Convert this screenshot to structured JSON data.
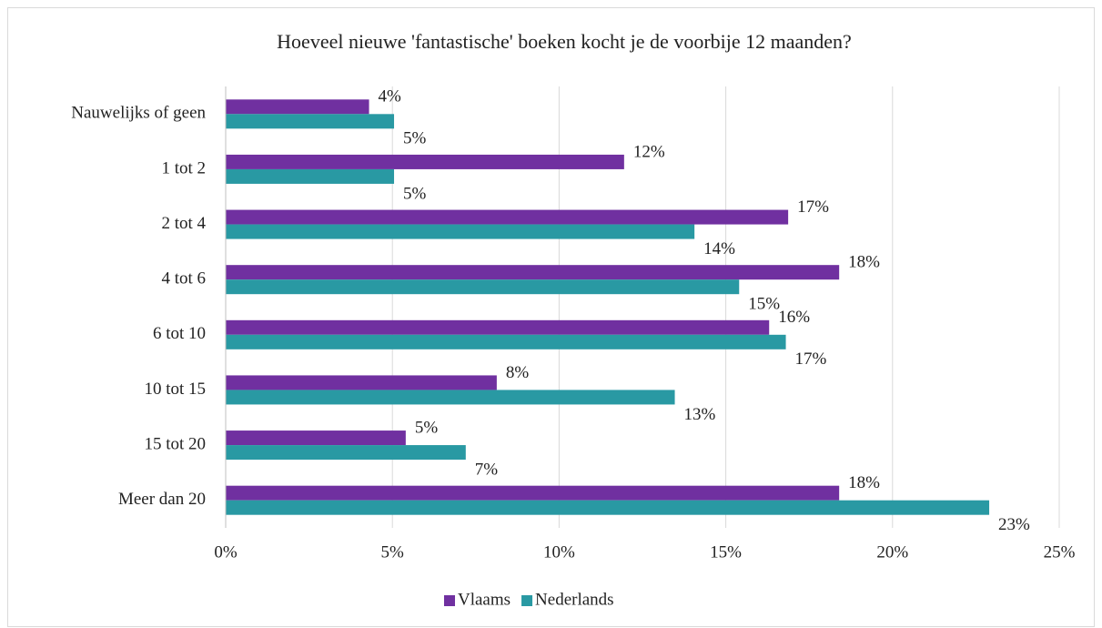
{
  "chart_data": {
    "type": "hbar",
    "title": "Hoeveel nieuwe 'fantastische' boeken kocht je de voorbije 12 maanden?",
    "categories": [
      "Nauwelijks of geen",
      "1 tot 2",
      "2 tot 4",
      "4 tot 6",
      "6 tot 10",
      "10 tot 15",
      "15 tot 20",
      "Meer dan 20"
    ],
    "series": [
      {
        "name": "Vlaams",
        "color": "#7030a0",
        "values": [
          4.3,
          11.95,
          16.87,
          18.4,
          16.3,
          8.13,
          5.4,
          18.4
        ],
        "value_labels": [
          "4%",
          "12%",
          "17%",
          "18%",
          "16%",
          "8%",
          "5%",
          "18%"
        ]
      },
      {
        "name": "Nederlands",
        "color": "#2999a3",
        "values": [
          5.05,
          5.05,
          14.06,
          15.4,
          16.8,
          13.47,
          7.2,
          22.9
        ],
        "value_labels": [
          "5%",
          "5%",
          "14%",
          "15%",
          "17%",
          "13%",
          "7%",
          "23%"
        ]
      }
    ],
    "xlim": [
      0,
      25
    ],
    "xticks": [
      {
        "value": 0,
        "label": "0%"
      },
      {
        "value": 5,
        "label": "5%"
      },
      {
        "value": 10,
        "label": "10%"
      },
      {
        "value": 15,
        "label": "15%"
      },
      {
        "value": 20,
        "label": "20%"
      },
      {
        "value": 25,
        "label": "25%"
      }
    ],
    "grid": true,
    "legend": "bottom"
  }
}
